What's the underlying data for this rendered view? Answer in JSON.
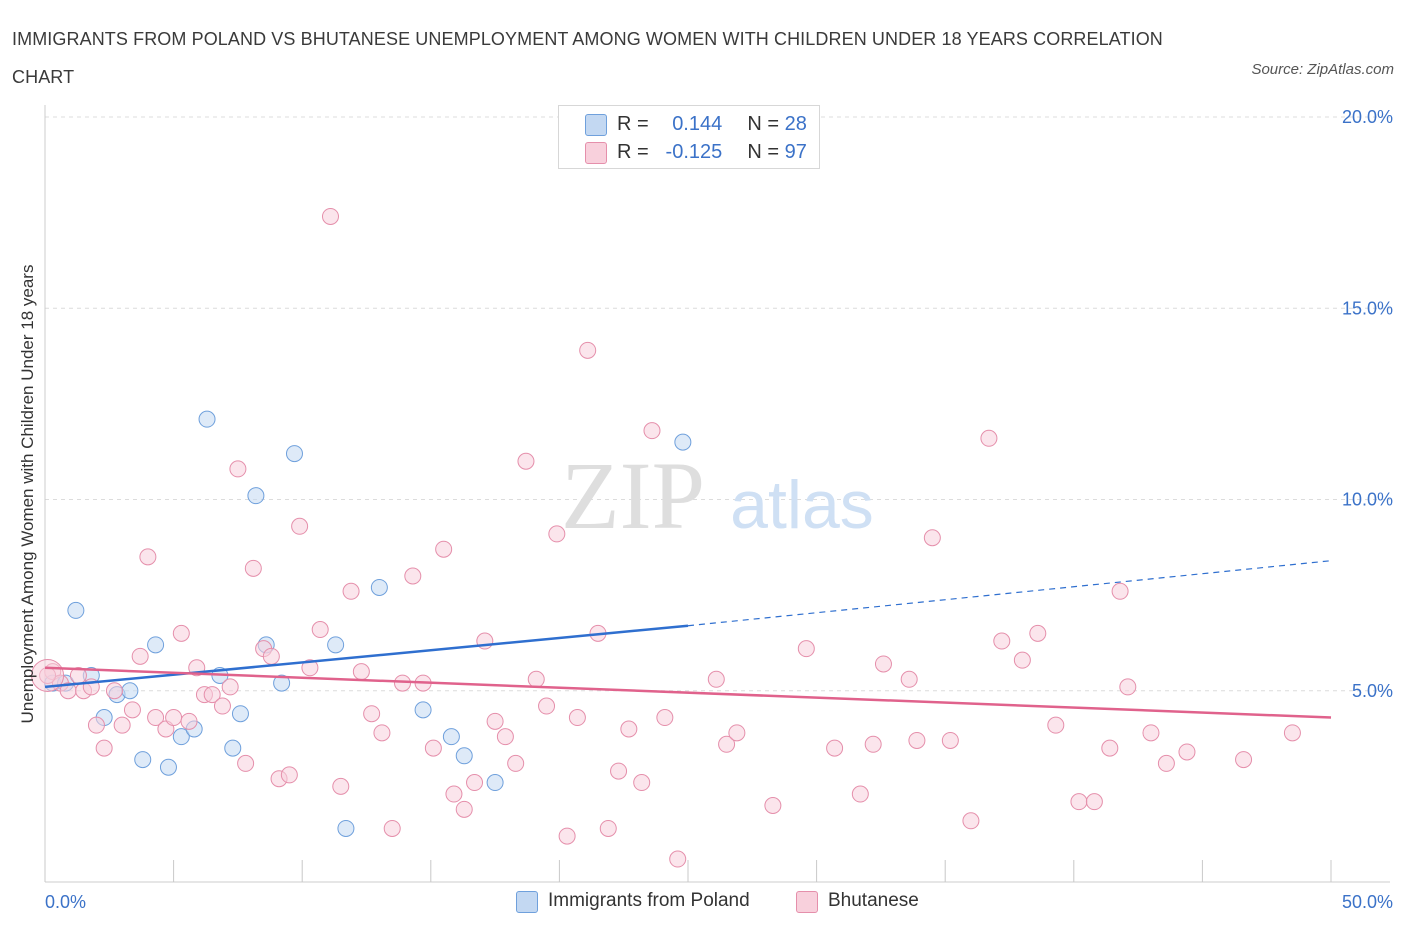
{
  "title": "IMMIGRANTS FROM POLAND VS BHUTANESE UNEMPLOYMENT AMONG WOMEN WITH CHILDREN UNDER 18 YEARS CORRELATION CHART",
  "source": "Source: ZipAtlas.com",
  "watermark": {
    "zip": "ZIP",
    "atlas": "atlas"
  },
  "legend_top": {
    "rows": [
      {
        "r_label": "R =",
        "r_value": "0.144",
        "n_label": "N =",
        "n_value": "28",
        "color": "#a8c8f0"
      },
      {
        "r_label": "R =",
        "r_value": "-0.125",
        "n_label": "N =",
        "n_value": "97",
        "color": "#f4b6c8"
      }
    ]
  },
  "legend_bottom": [
    {
      "label": "Immigrants from Poland",
      "color": "#a8c8f0"
    },
    {
      "label": "Bhutanese",
      "color": "#f4b6c8"
    }
  ],
  "chart_data": {
    "type": "scatter",
    "ylabel": "Unemployment Among Women with Children Under 18 years",
    "xlabel": "",
    "xlim": [
      0,
      50
    ],
    "ylim": [
      0,
      20
    ],
    "x_tick_labels": [
      {
        "value": 0,
        "label": "0.0%"
      },
      {
        "value": 50,
        "label": "50.0%"
      }
    ],
    "y_tick_labels": [
      {
        "value": 5,
        "label": "5.0%"
      },
      {
        "value": 10,
        "label": "10.0%"
      },
      {
        "value": 15,
        "label": "15.0%"
      },
      {
        "value": 20,
        "label": "20.0%"
      }
    ],
    "grid": "horizontal dashed",
    "series": [
      {
        "name": "Immigrants from Poland",
        "color": "#6fa0dc",
        "fill": "#c3d8f2",
        "trend": {
          "x": [
            0,
            25
          ],
          "y": [
            5.1,
            6.7
          ],
          "dashed_extension": {
            "x": [
              25,
              50
            ],
            "y": [
              6.7,
              8.4
            ]
          },
          "color": "#2f6fcf"
        },
        "points": [
          [
            0.3,
            5.2
          ],
          [
            0.8,
            5.2
          ],
          [
            1.2,
            7.1
          ],
          [
            1.8,
            5.4
          ],
          [
            2.3,
            4.3
          ],
          [
            2.8,
            4.9
          ],
          [
            3.3,
            5.0
          ],
          [
            3.8,
            3.2
          ],
          [
            4.3,
            6.2
          ],
          [
            4.8,
            3.0
          ],
          [
            5.3,
            3.8
          ],
          [
            5.8,
            4.0
          ],
          [
            6.3,
            12.1
          ],
          [
            6.8,
            5.4
          ],
          [
            7.3,
            3.5
          ],
          [
            7.6,
            4.4
          ],
          [
            8.2,
            10.1
          ],
          [
            8.6,
            6.2
          ],
          [
            9.2,
            5.2
          ],
          [
            9.7,
            11.2
          ],
          [
            11.3,
            6.2
          ],
          [
            11.7,
            1.4
          ],
          [
            13.0,
            7.7
          ],
          [
            14.7,
            4.5
          ],
          [
            15.8,
            3.8
          ],
          [
            16.3,
            3.3
          ],
          [
            17.5,
            2.6
          ],
          [
            24.8,
            11.5
          ]
        ]
      },
      {
        "name": "Bhutanese",
        "color": "#e58fab",
        "fill": "#f8d0dc",
        "trend": {
          "x": [
            0,
            50
          ],
          "y": [
            5.6,
            4.3
          ],
          "color": "#e0628c"
        },
        "points": [
          [
            0.3,
            5.5
          ],
          [
            0.6,
            5.2
          ],
          [
            0.9,
            5.0
          ],
          [
            1.3,
            5.4
          ],
          [
            1.5,
            5.0
          ],
          [
            1.8,
            5.1
          ],
          [
            2.0,
            4.1
          ],
          [
            2.3,
            3.5
          ],
          [
            2.7,
            5.0
          ],
          [
            3.0,
            4.1
          ],
          [
            3.4,
            4.5
          ],
          [
            3.7,
            5.9
          ],
          [
            4.0,
            8.5
          ],
          [
            4.3,
            4.3
          ],
          [
            4.7,
            4.0
          ],
          [
            5.0,
            4.3
          ],
          [
            5.3,
            6.5
          ],
          [
            5.6,
            4.2
          ],
          [
            5.9,
            5.6
          ],
          [
            6.2,
            4.9
          ],
          [
            6.5,
            4.9
          ],
          [
            6.9,
            4.6
          ],
          [
            7.2,
            5.1
          ],
          [
            7.5,
            10.8
          ],
          [
            7.8,
            3.1
          ],
          [
            8.1,
            8.2
          ],
          [
            8.5,
            6.1
          ],
          [
            8.8,
            5.9
          ],
          [
            9.1,
            2.7
          ],
          [
            9.5,
            2.8
          ],
          [
            9.9,
            9.3
          ],
          [
            10.3,
            5.6
          ],
          [
            10.7,
            6.6
          ],
          [
            11.1,
            17.4
          ],
          [
            11.5,
            2.5
          ],
          [
            11.9,
            7.6
          ],
          [
            12.3,
            5.5
          ],
          [
            12.7,
            4.4
          ],
          [
            13.1,
            3.9
          ],
          [
            13.5,
            1.4
          ],
          [
            13.9,
            5.2
          ],
          [
            14.3,
            8.0
          ],
          [
            14.7,
            5.2
          ],
          [
            15.1,
            3.5
          ],
          [
            15.5,
            8.7
          ],
          [
            15.9,
            2.3
          ],
          [
            16.3,
            1.9
          ],
          [
            16.7,
            2.6
          ],
          [
            17.1,
            6.3
          ],
          [
            17.5,
            4.2
          ],
          [
            17.9,
            3.8
          ],
          [
            18.3,
            3.1
          ],
          [
            18.7,
            11.0
          ],
          [
            19.1,
            5.3
          ],
          [
            19.5,
            4.6
          ],
          [
            19.9,
            9.1
          ],
          [
            20.3,
            1.2
          ],
          [
            20.7,
            4.3
          ],
          [
            21.1,
            13.9
          ],
          [
            21.5,
            6.5
          ],
          [
            21.9,
            1.4
          ],
          [
            22.3,
            2.9
          ],
          [
            22.7,
            4.0
          ],
          [
            23.2,
            2.6
          ],
          [
            23.6,
            11.8
          ],
          [
            24.1,
            4.3
          ],
          [
            24.6,
            0.6
          ],
          [
            26.1,
            5.3
          ],
          [
            26.5,
            3.6
          ],
          [
            26.9,
            3.9
          ],
          [
            28.3,
            2.0
          ],
          [
            29.6,
            6.1
          ],
          [
            30.7,
            3.5
          ],
          [
            31.7,
            2.3
          ],
          [
            32.2,
            3.6
          ],
          [
            32.6,
            5.7
          ],
          [
            33.6,
            5.3
          ],
          [
            33.9,
            3.7
          ],
          [
            34.5,
            9.0
          ],
          [
            35.2,
            3.7
          ],
          [
            36.0,
            1.6
          ],
          [
            36.7,
            11.6
          ],
          [
            37.2,
            6.3
          ],
          [
            38.0,
            5.8
          ],
          [
            38.6,
            6.5
          ],
          [
            39.3,
            4.1
          ],
          [
            40.2,
            2.1
          ],
          [
            40.8,
            2.1
          ],
          [
            41.4,
            3.5
          ],
          [
            41.8,
            7.6
          ],
          [
            42.1,
            5.1
          ],
          [
            43.0,
            3.9
          ],
          [
            43.6,
            3.1
          ],
          [
            44.4,
            3.4
          ],
          [
            46.6,
            3.2
          ],
          [
            48.5,
            3.9
          ],
          [
            0.1,
            5.4
          ]
        ]
      }
    ]
  }
}
